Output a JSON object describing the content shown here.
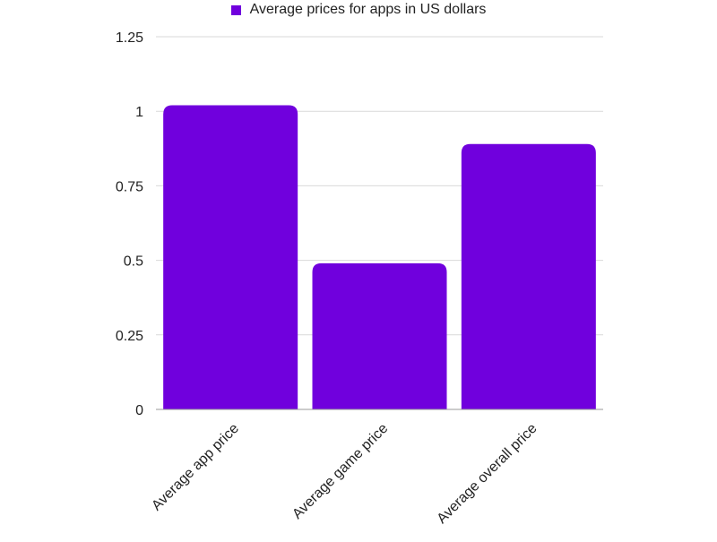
{
  "chart_data": {
    "type": "bar",
    "categories": [
      "Average app price",
      "Average game price",
      "Average overall price"
    ],
    "series": [
      {
        "name": "Average prices for apps in US dollars",
        "values": [
          1.02,
          0.49,
          0.89
        ]
      }
    ],
    "ylim": [
      0,
      1.25
    ],
    "yticks": [
      "0",
      "0.25",
      "0.5",
      "0.75",
      "1",
      "1.25"
    ],
    "grid": true,
    "legend_position": "top-center",
    "colors": {
      "bar": "#7000DD",
      "grid": "#d9d9d9",
      "axis": "#999999",
      "text": "#222222"
    }
  }
}
